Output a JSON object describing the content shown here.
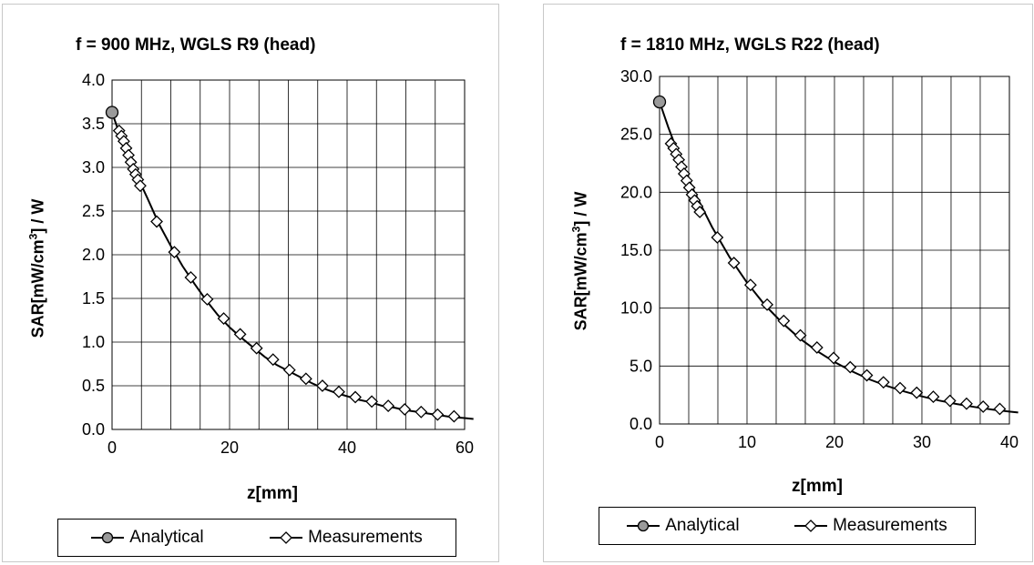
{
  "chart_data": [
    {
      "type": "line",
      "title": "f = 900 MHz, WGLS R9 (head)",
      "xlabel": "z[mm]",
      "ylabel": "SAR[mW/cm³] / W",
      "xlim": [
        0,
        60
      ],
      "ylim": [
        0,
        4
      ],
      "xticks": [
        0,
        20,
        40,
        60
      ],
      "yticks": [
        0,
        0.5,
        1.0,
        1.5,
        2.0,
        2.5,
        3.0,
        3.5,
        4.0
      ],
      "ytick_labels": [
        "0.0",
        "0.5",
        "1.0",
        "1.5",
        "2.0",
        "2.5",
        "3.0",
        "3.5",
        "4.0"
      ],
      "xtick_labels": [
        "0",
        "20",
        "40",
        "60"
      ],
      "x_grid_step": 5,
      "grid": true,
      "legend_position": "bottom",
      "series": [
        {
          "name": "Analytical",
          "marker": "circle",
          "x": [
            0,
            2,
            4,
            6,
            8,
            10,
            12,
            14,
            16,
            18,
            20,
            22,
            24,
            26,
            28,
            30,
            32,
            34,
            36,
            38,
            40,
            42,
            44,
            46,
            48,
            50,
            52,
            54,
            56,
            58,
            60,
            61.5
          ],
          "y": [
            3.63,
            3.24,
            2.94,
            2.65,
            2.35,
            2.1,
            1.87,
            1.67,
            1.48,
            1.31,
            1.17,
            1.05,
            0.94,
            0.83,
            0.74,
            0.67,
            0.6,
            0.53,
            0.47,
            0.42,
            0.38,
            0.34,
            0.31,
            0.27,
            0.25,
            0.22,
            0.2,
            0.18,
            0.16,
            0.14,
            0.13,
            0.12
          ]
        },
        {
          "name": "Measurements",
          "marker": "diamond",
          "x": [
            1.2,
            1.6,
            2.0,
            2.4,
            2.8,
            3.2,
            3.6,
            4.0,
            4.4,
            4.8,
            7.6,
            10.6,
            13.4,
            16.2,
            19.0,
            21.8,
            24.6,
            27.4,
            30.2,
            33.0,
            35.8,
            38.6,
            41.4,
            44.2,
            47.0,
            49.8,
            52.6,
            55.4,
            58.2
          ],
          "y": [
            3.42,
            3.36,
            3.3,
            3.22,
            3.14,
            3.06,
            2.98,
            2.92,
            2.86,
            2.79,
            2.38,
            2.03,
            1.74,
            1.49,
            1.27,
            1.09,
            0.93,
            0.8,
            0.68,
            0.58,
            0.5,
            0.43,
            0.37,
            0.32,
            0.27,
            0.23,
            0.2,
            0.17,
            0.15
          ]
        }
      ]
    },
    {
      "type": "line",
      "title": "f = 1810 MHz, WGLS R22 (head)",
      "xlabel": "z[mm]",
      "ylabel": "SAR[mW/cm³] / W",
      "xlim": [
        0,
        40
      ],
      "ylim": [
        0,
        30
      ],
      "xticks": [
        0,
        10,
        20,
        30,
        40
      ],
      "yticks": [
        0,
        5,
        10,
        15,
        20,
        25,
        30
      ],
      "ytick_labels": [
        "0.0",
        "5.0",
        "10.0",
        "15.0",
        "20.0",
        "25.0",
        "30.0"
      ],
      "xtick_labels": [
        "0",
        "10",
        "20",
        "30",
        "40"
      ],
      "x_grid_step": 3.333,
      "grid": true,
      "legend_position": "bottom",
      "series": [
        {
          "name": "Analytical",
          "marker": "circle",
          "x": [
            0,
            1,
            2,
            3,
            4,
            5,
            6,
            8,
            10,
            12,
            14,
            16,
            18,
            20,
            22,
            24,
            26,
            28,
            30,
            32,
            34,
            36,
            38,
            40,
            41
          ],
          "y": [
            27.8,
            25.6,
            23.6,
            21.7,
            20.0,
            18.5,
            17.0,
            14.4,
            12.2,
            10.3,
            8.75,
            7.4,
            6.3,
            5.35,
            4.55,
            3.85,
            3.28,
            2.8,
            2.38,
            2.02,
            1.72,
            1.47,
            1.25,
            1.07,
            0.99
          ]
        },
        {
          "name": "Measurements",
          "marker": "diamond",
          "x": [
            1.3,
            1.6,
            1.9,
            2.2,
            2.5,
            2.8,
            3.1,
            3.4,
            3.7,
            4.0,
            4.3,
            4.6,
            6.6,
            8.5,
            10.4,
            12.3,
            14.2,
            16.1,
            18.0,
            19.9,
            21.8,
            23.7,
            25.6,
            27.5,
            29.4,
            31.3,
            33.2,
            35.1,
            37.0,
            38.9
          ],
          "y": [
            24.2,
            23.8,
            23.3,
            22.8,
            22.2,
            21.6,
            21.0,
            20.4,
            19.8,
            19.3,
            18.8,
            18.3,
            16.1,
            13.9,
            12.0,
            10.3,
            8.9,
            7.65,
            6.6,
            5.7,
            4.9,
            4.2,
            3.6,
            3.1,
            2.7,
            2.35,
            2.0,
            1.75,
            1.5,
            1.3
          ]
        }
      ]
    }
  ]
}
